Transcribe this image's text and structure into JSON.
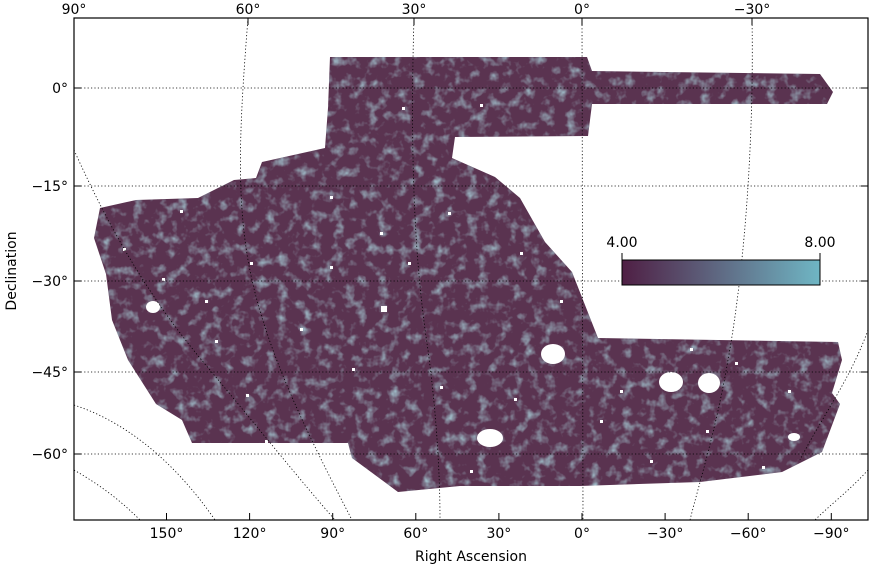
{
  "chart_data": {
    "type": "heatmap",
    "title": "",
    "xlabel": "Right Ascension",
    "ylabel": "Declination",
    "top_ticks": [
      "90°",
      "60°",
      "30°",
      "0°",
      "−30°"
    ],
    "top_tick_values": [
      90,
      60,
      30,
      0,
      -30
    ],
    "bottom_ticks": [
      "150°",
      "120°",
      "90°",
      "60°",
      "30°",
      "0°",
      "−30°",
      "−60°",
      "−90°"
    ],
    "bottom_tick_values": [
      150,
      120,
      90,
      60,
      30,
      0,
      -30,
      -60,
      -90
    ],
    "y_ticks": [
      "0°",
      "−15°",
      "−30°",
      "−45°",
      "−60°"
    ],
    "y_tick_values": [
      0,
      -15,
      -30,
      -45,
      -60
    ],
    "ylim": [
      -70,
      10
    ],
    "colorbar": {
      "min_label": "4.00",
      "max_label": "8.00",
      "range": [
        4.0,
        8.0
      ],
      "color_low": "#4f1f44",
      "color_high": "#6fb6c4"
    },
    "grid": "dotted graticule",
    "footprint_color": "#5a3350"
  }
}
